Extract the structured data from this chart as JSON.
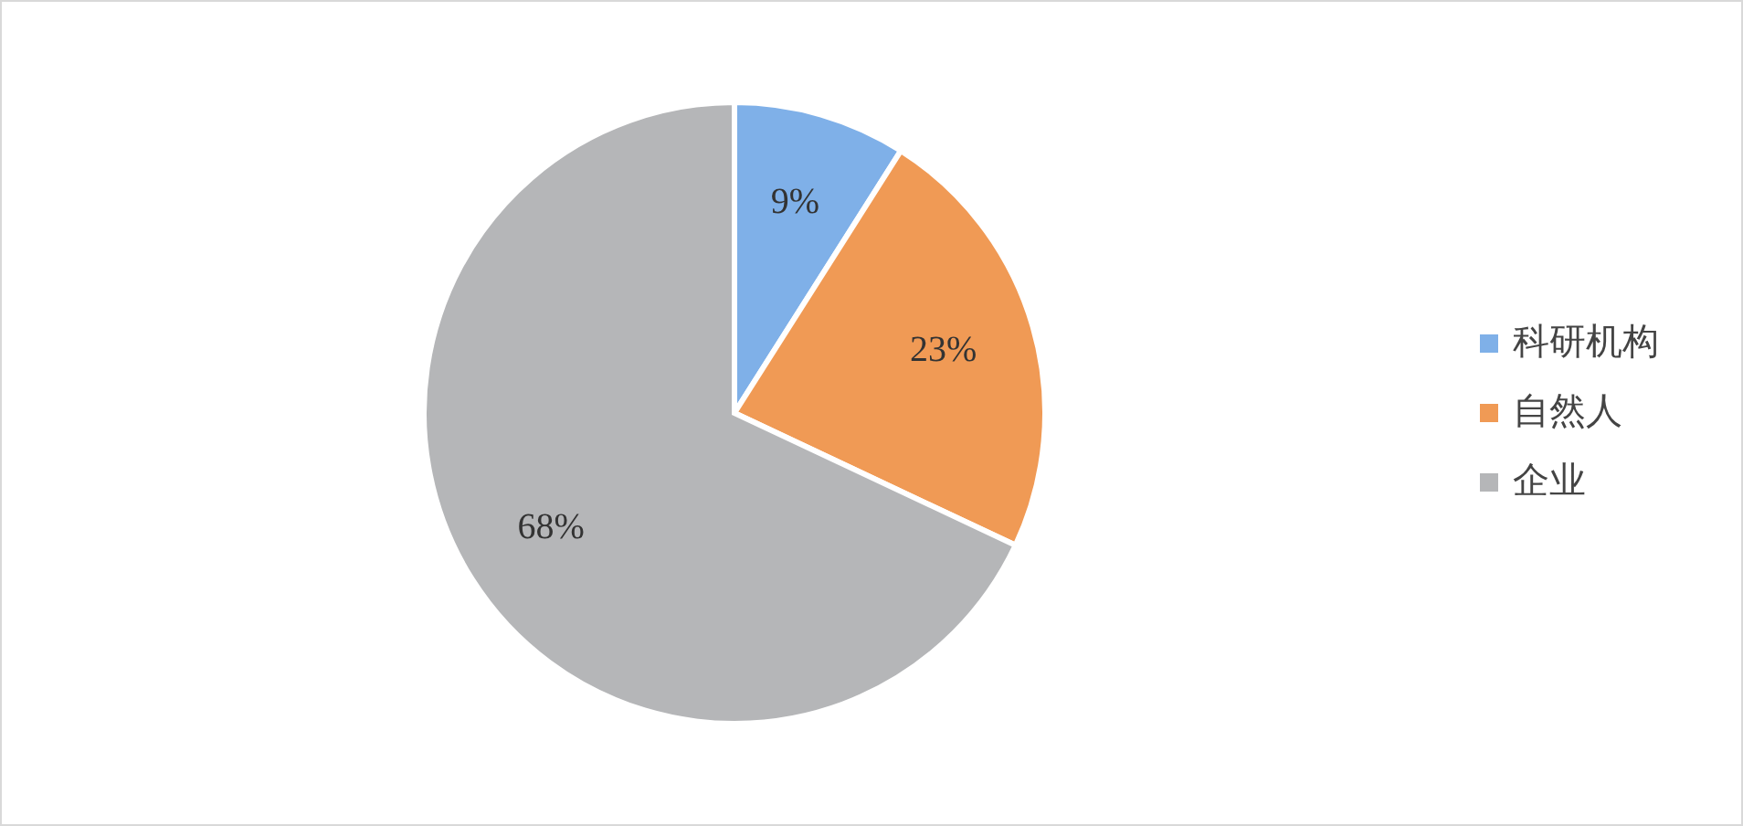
{
  "chart_data": {
    "type": "pie",
    "categories": [
      "科研机构",
      "自然人",
      "企业"
    ],
    "values": [
      9,
      23,
      68
    ],
    "colors": [
      "#7fb0e8",
      "#f09a55",
      "#b5b6b8"
    ],
    "value_labels": [
      "9%",
      "23%",
      "68%"
    ],
    "legend": "right"
  }
}
